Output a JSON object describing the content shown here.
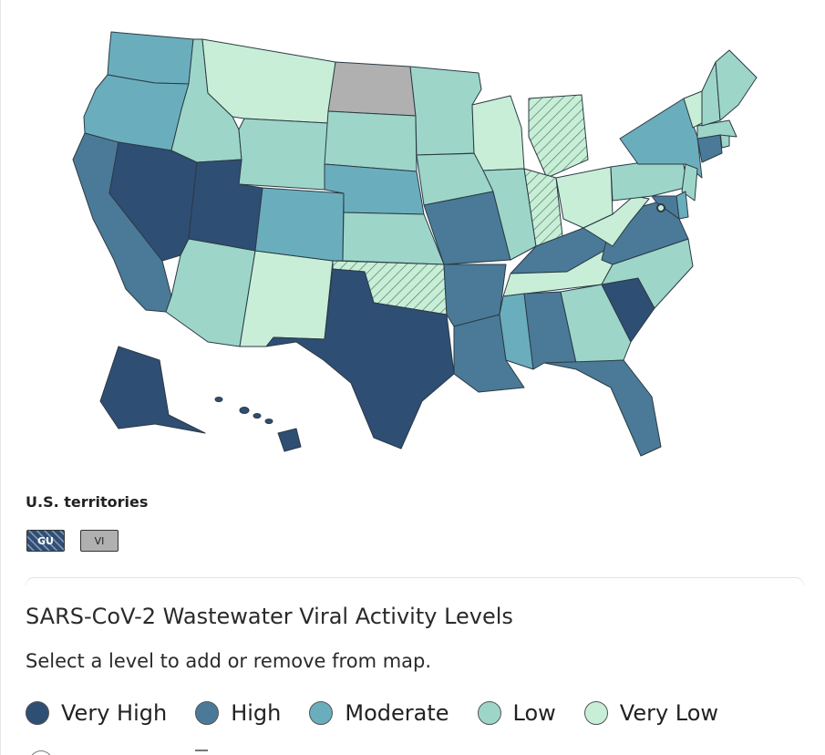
{
  "colors": {
    "very_high": "#2f4e74",
    "high": "#4a7a98",
    "moderate": "#6aaebd",
    "low": "#9dd6c9",
    "very_low": "#c8eed8",
    "no_data": "#b0b0b0",
    "border": "#2b3a44",
    "hatch_line": "#5e8d6e"
  },
  "map": {
    "type": "choropleth",
    "region": "United States",
    "states": {
      "WA": "moderate",
      "OR": "moderate",
      "CA": "high",
      "NV": "very_high",
      "ID": "low",
      "MT": "very_low",
      "WY": "low",
      "UT": "very_high",
      "AZ": "low",
      "NM": "very_low",
      "CO": "moderate",
      "ND": "no_data",
      "SD": "low",
      "NE": "moderate",
      "KS": "low",
      "OK": "low_hatched",
      "TX": "very_high",
      "MN": "low",
      "IA": "low",
      "MO": "high",
      "AR": "high",
      "LA": "high",
      "WI": "very_low",
      "IL": "low",
      "MI": "low_hatched",
      "IN": "low_hatched",
      "OH": "very_low",
      "KY": "high",
      "TN": "very_low",
      "MS": "moderate",
      "AL": "high",
      "GA": "low",
      "FL": "high",
      "SC": "very_high",
      "NC": "low",
      "VA": "high",
      "WV": "very_low",
      "PA": "low",
      "NY": "moderate",
      "NJ": "low",
      "DE": "moderate",
      "MD": "high",
      "DC": "very_low",
      "CT": "high",
      "RI": "low",
      "MA": "low",
      "VT": "very_low",
      "NH": "low",
      "ME": "low",
      "AK": "very_high",
      "HI": "very_high"
    }
  },
  "territories": {
    "title": "U.S. territories",
    "items": [
      {
        "code": "GU",
        "level": "very_high_hatched"
      },
      {
        "code": "VI",
        "level": "no_data"
      }
    ]
  },
  "legend": {
    "title": "SARS-CoV-2 Wastewater Viral Activity Levels",
    "subtitle": "Select a level to add or remove from map.",
    "items": [
      {
        "label": "Very High",
        "color": "#2f4e74"
      },
      {
        "label": "High",
        "color": "#4a7a98"
      },
      {
        "label": "Moderate",
        "color": "#6aaebd"
      },
      {
        "label": "Low",
        "color": "#9dd6c9"
      },
      {
        "label": "Very Low",
        "color": "#c8eed8"
      }
    ]
  }
}
